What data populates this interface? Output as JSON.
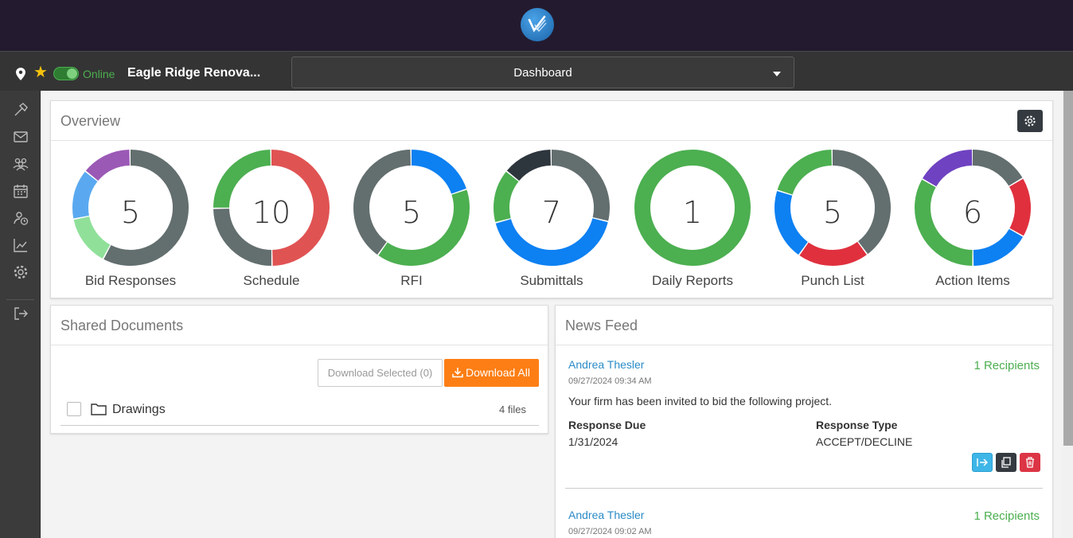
{
  "header": {
    "status": "Online",
    "project_name": "Eagle Ridge Renova...",
    "view_selector": "Dashboard"
  },
  "sidebar": {
    "icons": [
      "hammer-icon",
      "mail-icon",
      "users-icon",
      "calendar-icon",
      "user-clock-icon",
      "chart-icon",
      "gear-icon",
      "logout-icon"
    ]
  },
  "overview": {
    "title": "Overview",
    "widgets": [
      {
        "label": "Bid Responses",
        "count": "5",
        "segments": [
          {
            "value": 0.58,
            "color": "#636e6e"
          },
          {
            "value": 0.14,
            "color": "#90e09a"
          },
          {
            "value": 0.14,
            "color": "#5aa9f0"
          },
          {
            "value": 0.14,
            "color": "#9b59b6"
          }
        ]
      },
      {
        "label": "Schedule",
        "count": "10",
        "segments": [
          {
            "value": 0.5,
            "color": "#e05353"
          },
          {
            "value": 0.25,
            "color": "#636e6e"
          },
          {
            "value": 0.25,
            "color": "#4caf50"
          }
        ]
      },
      {
        "label": "RFI",
        "count": "5",
        "segments": [
          {
            "value": 0.2,
            "color": "#0d80f2"
          },
          {
            "value": 0.4,
            "color": "#4caf50"
          },
          {
            "value": 0.4,
            "color": "#636e6e"
          }
        ]
      },
      {
        "label": "Submittals",
        "count": "7",
        "segments": [
          {
            "value": 0.29,
            "color": "#636e6e"
          },
          {
            "value": 0.42,
            "color": "#0d80f2"
          },
          {
            "value": 0.15,
            "color": "#4caf50"
          },
          {
            "value": 0.14,
            "color": "#2d353d"
          }
        ]
      },
      {
        "label": "Daily Reports",
        "count": "1",
        "segments": [
          {
            "value": 1.0,
            "color": "#4caf50"
          }
        ]
      },
      {
        "label": "Punch List",
        "count": "5",
        "segments": [
          {
            "value": 0.4,
            "color": "#636e6e"
          },
          {
            "value": 0.2,
            "color": "#e0303e"
          },
          {
            "value": 0.2,
            "color": "#0d80f2"
          },
          {
            "value": 0.2,
            "color": "#4caf50"
          }
        ]
      },
      {
        "label": "Action Items",
        "count": "6",
        "segments": [
          {
            "value": 0.167,
            "color": "#636e6e"
          },
          {
            "value": 0.167,
            "color": "#e0303e"
          },
          {
            "value": 0.167,
            "color": "#0d80f2"
          },
          {
            "value": 0.333,
            "color": "#4caf50"
          },
          {
            "value": 0.167,
            "color": "#6f42c1"
          }
        ]
      }
    ]
  },
  "shared_documents": {
    "title": "Shared Documents",
    "download_selected": "Download Selected (0)",
    "download_all": "Download All",
    "items": [
      {
        "name": "Drawings",
        "count": "4 files"
      }
    ]
  },
  "news_feed": {
    "title": "News Feed",
    "items": [
      {
        "author": "Andrea Thesler",
        "recipients": "1 Recipients",
        "timestamp": "09/27/2024 09:34 AM",
        "message": "Your firm has been invited to bid the following project.",
        "fields": [
          {
            "label": "Response Due",
            "value": "1/31/2024"
          },
          {
            "label": "Response Type",
            "value": "ACCEPT/DECLINE"
          }
        ]
      },
      {
        "author": "Andrea Thesler",
        "recipients": "1 Recipients",
        "timestamp": "09/27/2024 09:02 AM"
      }
    ]
  }
}
